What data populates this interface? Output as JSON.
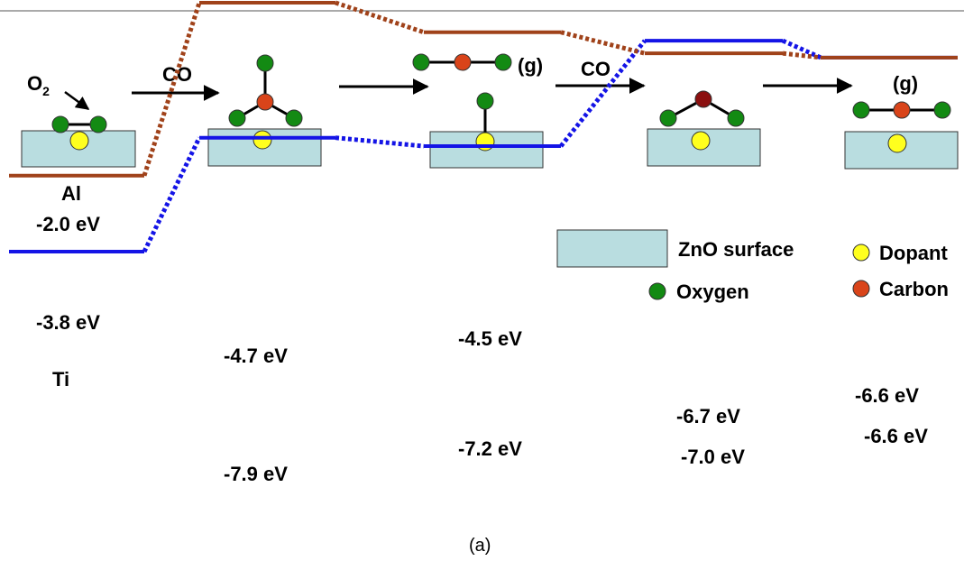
{
  "figure": {
    "caption": "(a)",
    "colors": {
      "al_series": "#1414e6",
      "ti_series": "#a0421a",
      "surface_fill": "#b9dde0",
      "oxygen": "#138a13",
      "carbon": "#d9441a",
      "carbon_dark": "#8b1010",
      "dopant": "#ffff1e"
    }
  },
  "mechanism": {
    "o2_label_main": "O",
    "o2_label_sub": "2",
    "arrow_labels": [
      "CO",
      "CO"
    ],
    "gas_labels": [
      "(g)",
      "(g)"
    ]
  },
  "legend": {
    "surface_label": "ZnO surface",
    "dopant_label": "Dopant",
    "oxygen_label": "Oxygen",
    "carbon_label": "Carbon"
  },
  "series": [
    {
      "name": "Al",
      "color": "#1414e6",
      "levels_eV": [
        -2.0,
        -4.7,
        -4.5,
        -7.0,
        -6.6
      ],
      "labels": [
        "-2.0 eV",
        "-4.7 eV",
        "-4.5 eV",
        "-7.0 eV",
        "-6.6 eV"
      ]
    },
    {
      "name": "Ti",
      "color": "#a0421a",
      "levels_eV": [
        -3.8,
        -7.9,
        -7.2,
        -6.7,
        -6.6
      ],
      "labels": [
        "-3.8 eV",
        "-7.9 eV",
        "-7.2 eV",
        "-6.7 eV",
        "-6.6 eV"
      ]
    }
  ]
}
